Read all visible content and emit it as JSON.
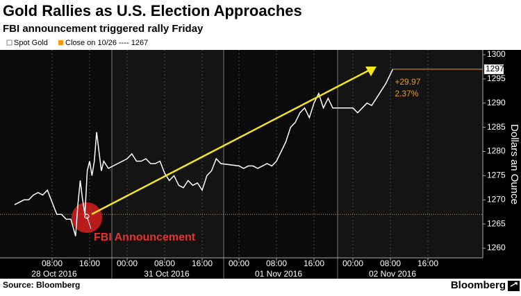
{
  "chart_data": {
    "type": "line",
    "title": "Gold Rallies as U.S. Election Approaches",
    "subtitle": "FBI announcement triggered rally Friday",
    "y_axis_label": "Dollars an Ounce",
    "source": "Source: Bloomberg",
    "brand": "Bloomberg",
    "series": [
      {
        "name": "Spot Gold",
        "color": "#ffffff",
        "x": [
          "28 Oct 2016 00:00",
          "28 Oct 2016 02:00",
          "28 Oct 2016 03:00",
          "28 Oct 2016 04:00",
          "28 Oct 2016 05:00",
          "28 Oct 2016 06:00",
          "28 Oct 2016 07:00",
          "28 Oct 2016 08:00",
          "28 Oct 2016 09:00",
          "28 Oct 2016 10:00",
          "28 Oct 2016 11:00",
          "28 Oct 2016 12:00",
          "28 Oct 2016 13:00",
          "28 Oct 2016 13:30",
          "28 Oct 2016 14:00",
          "28 Oct 2016 14:30",
          "28 Oct 2016 15:00",
          "28 Oct 2016 15:30",
          "28 Oct 2016 16:00",
          "28 Oct 2016 16:30",
          "28 Oct 2016 17:00",
          "28 Oct 2016 17:30",
          "28 Oct 2016 18:00",
          "28 Oct 2016 18:30",
          "28 Oct 2016 19:00",
          "28 Oct 2016 20:00",
          "31 Oct 2016 00:00",
          "31 Oct 2016 01:00",
          "31 Oct 2016 02:00",
          "31 Oct 2016 03:00",
          "31 Oct 2016 04:00",
          "31 Oct 2016 05:00",
          "31 Oct 2016 06:00",
          "31 Oct 2016 07:00",
          "31 Oct 2016 08:00",
          "31 Oct 2016 09:00",
          "31 Oct 2016 10:00",
          "31 Oct 2016 11:00",
          "31 Oct 2016 12:00",
          "31 Oct 2016 13:00",
          "31 Oct 2016 14:00",
          "31 Oct 2016 15:00",
          "31 Oct 2016 16:00",
          "31 Oct 2016 17:00",
          "31 Oct 2016 18:00",
          "31 Oct 2016 19:00",
          "31 Oct 2016 20:00",
          "01 Nov 2016 00:00",
          "01 Nov 2016 01:00",
          "01 Nov 2016 02:00",
          "01 Nov 2016 03:00",
          "01 Nov 2016 04:00",
          "01 Nov 2016 05:00",
          "01 Nov 2016 06:00",
          "01 Nov 2016 07:00",
          "01 Nov 2016 08:00",
          "01 Nov 2016 09:00",
          "01 Nov 2016 10:00",
          "01 Nov 2016 11:00",
          "01 Nov 2016 12:00",
          "01 Nov 2016 13:00",
          "01 Nov 2016 14:00",
          "01 Nov 2016 15:00",
          "01 Nov 2016 16:00",
          "01 Nov 2016 17:00",
          "01 Nov 2016 18:00",
          "01 Nov 2016 19:00",
          "01 Nov 2016 20:00",
          "02 Nov 2016 00:00",
          "02 Nov 2016 01:00",
          "02 Nov 2016 02:00",
          "02 Nov 2016 03:00",
          "02 Nov 2016 04:00",
          "02 Nov 2016 05:00",
          "02 Nov 2016 06:00",
          "02 Nov 2016 07:00",
          "02 Nov 2016 08:00",
          "02 Nov 2016 08:30"
        ],
        "values": [
          1269,
          1270,
          1270,
          1271,
          1271.5,
          1271,
          1272,
          1269.5,
          1267,
          1267,
          1266,
          1266,
          1262.5,
          1269,
          1274,
          1270,
          1267,
          1276,
          1278,
          1275,
          1278,
          1284,
          1280,
          1276,
          1278,
          1276.5,
          1278.5,
          1279.5,
          1278,
          1278,
          1278.5,
          1277.5,
          1277.5,
          1278,
          1275.5,
          1274,
          1275,
          1273,
          1272.5,
          1274,
          1273,
          1273.5,
          1272,
          1275,
          1276,
          1278.5,
          1277.5,
          1277,
          1276.5,
          1277,
          1277,
          1276.5,
          1277,
          1277.5,
          1277,
          1278,
          1280,
          1282,
          1285,
          1286,
          1288,
          1289,
          1287,
          1290,
          1292,
          1289,
          1291,
          1289,
          1289,
          1288,
          1289,
          1290,
          1289.5,
          1291,
          1292.5,
          1294,
          1296,
          1297
        ]
      }
    ],
    "reference": {
      "value": 1267,
      "label": "Close on 10/26 ---- 1267",
      "color": "#f39c12"
    },
    "last_value": 1297,
    "change": "+29.97",
    "change_pct": "2.37%",
    "annotation": "FBI Announcement",
    "ylim": [
      1258,
      1301
    ],
    "yticks": [
      1260,
      1265,
      1270,
      1275,
      1280,
      1285,
      1290,
      1295,
      1300
    ],
    "xticks": [
      {
        "value": "28 Oct 2016 08:00",
        "label": "08:00"
      },
      {
        "value": "28 Oct 2016 16:00",
        "label": "16:00"
      },
      {
        "value": "31 Oct 2016 00:00",
        "label": "00:00"
      },
      {
        "value": "31 Oct 2016 08:00",
        "label": "08:00"
      },
      {
        "value": "31 Oct 2016 16:00",
        "label": "16:00"
      },
      {
        "value": "01 Nov 2016 00:00",
        "label": "00:00"
      },
      {
        "value": "01 Nov 2016 08:00",
        "label": "08:00"
      },
      {
        "value": "01 Nov 2016 16:00",
        "label": "16:00"
      },
      {
        "value": "02 Nov 2016 00:00",
        "label": "00:00"
      },
      {
        "value": "02 Nov 2016 08:00",
        "label": "08:00"
      },
      {
        "value": "02 Nov 2016 16:00",
        "label": "16:00"
      }
    ],
    "dates": [
      "28 Oct 2016",
      "31 Oct 2016",
      "01 Nov 2016",
      "02 Nov 2016"
    ]
  }
}
